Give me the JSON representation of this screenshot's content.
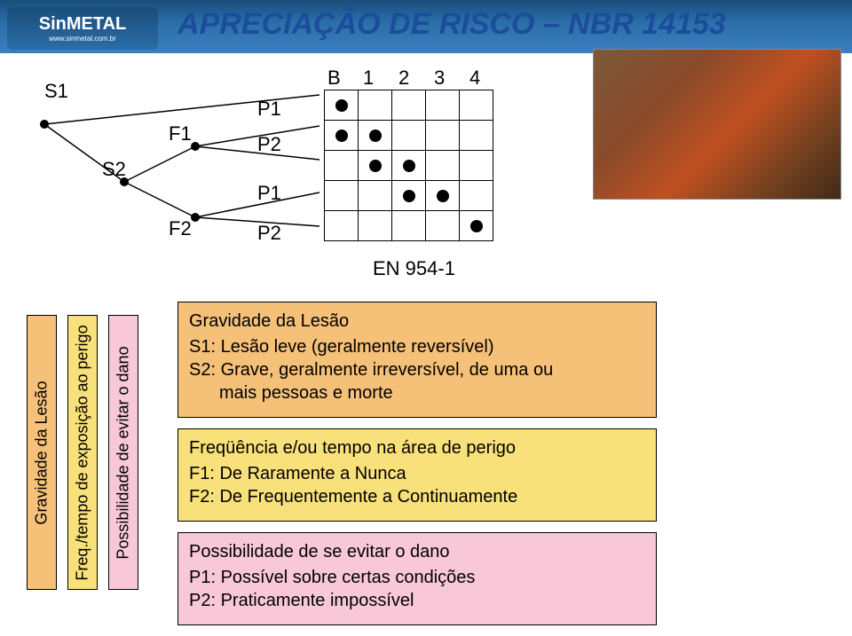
{
  "header": {
    "logo": "SinMETAL",
    "logo_sub": "www.sinmetal.com.br",
    "title_accent": "A",
    "title_rest": "PRECIAÇÃO DE RISCO – NBR 14153"
  },
  "tree": {
    "S1": "S1",
    "S2": "S2",
    "F1": "F1",
    "F2": "F2",
    "P1": "P1",
    "P2": "P2"
  },
  "grid": {
    "columns": [
      "B",
      "1",
      "2",
      "3",
      "4"
    ],
    "rows": [
      [
        true,
        false,
        false,
        false,
        false
      ],
      [
        true,
        true,
        false,
        false,
        false
      ],
      [
        false,
        true,
        true,
        false,
        false
      ],
      [
        false,
        false,
        true,
        true,
        false
      ],
      [
        false,
        false,
        false,
        false,
        true
      ]
    ],
    "en_label": "EN 954-1"
  },
  "vbars": [
    {
      "text": "Gravidade da Lesão",
      "bg": "#f5c078"
    },
    {
      "text": "Freq./tempo de exposição ao perigo",
      "bg": "#f8e07a"
    },
    {
      "text": "Possibilidade de evitar o dano",
      "bg": "#f8c8d8"
    }
  ],
  "boxes": [
    {
      "bg": "#f5c078",
      "title": "Gravidade da Lesão",
      "lines": [
        "S1: Lesão leve (geralmente reversível)",
        "S2: Grave, geralmente irreversível, de uma ou",
        "      mais pessoas e morte"
      ]
    },
    {
      "bg": "#f8e07a",
      "title": "Freqüência e/ou tempo na área de perigo",
      "lines": [
        "F1: De Raramente a Nunca",
        "F2: De Frequentemente a Continuamente"
      ]
    },
    {
      "bg": "#f8c8d8",
      "title": "Possibilidade de se evitar o dano",
      "lines": [
        "P1: Possível sobre certas condições",
        "P2: Praticamente impossível"
      ]
    }
  ]
}
